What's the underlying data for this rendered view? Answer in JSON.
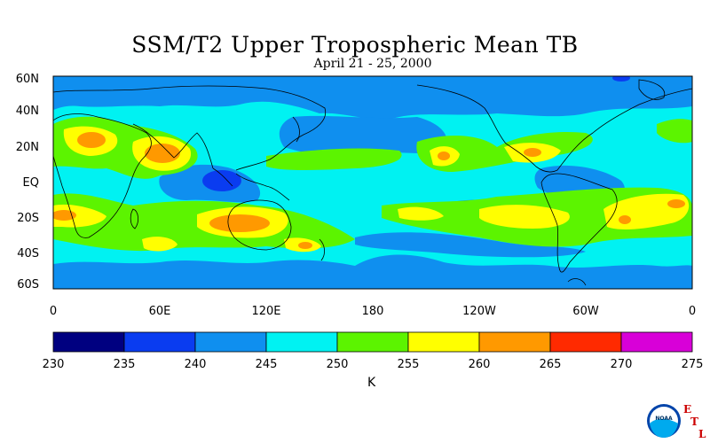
{
  "title": "SSM/T2 Upper Tropospheric Mean TB",
  "subtitle": "April 21 - 25, 2000",
  "lat_labels": [
    "60N",
    "40N",
    "20N",
    "EQ",
    "20S",
    "40S",
    "60S"
  ],
  "lon_labels": [
    "0",
    "60E",
    "120E",
    "180",
    "120W",
    "60W",
    "0"
  ],
  "colorbar": {
    "ticks": [
      "230",
      "235",
      "240",
      "245",
      "250",
      "255",
      "260",
      "265",
      "270",
      "275"
    ],
    "colors": [
      "#000080",
      "#0a3cf0",
      "#0f8fef",
      "#00f2f2",
      "#5cf400",
      "#ffff00",
      "#ff9900",
      "#ff2a00",
      "#d800d8"
    ],
    "unit": "K"
  },
  "chart_data": {
    "type": "heatmap",
    "title": "SSM/T2 Upper Tropospheric Mean TB",
    "subtitle": "April 21 - 25, 2000",
    "xlim": [
      0,
      360
    ],
    "ylim": [
      -60,
      60
    ],
    "value_range": [
      230,
      275
    ],
    "levels": [
      230,
      235,
      240,
      245,
      250,
      255,
      260,
      265,
      270,
      275
    ],
    "unit": "K"
  },
  "logo": {
    "primary": "NOAA",
    "secondary": [
      "E",
      "T",
      "L"
    ]
  }
}
